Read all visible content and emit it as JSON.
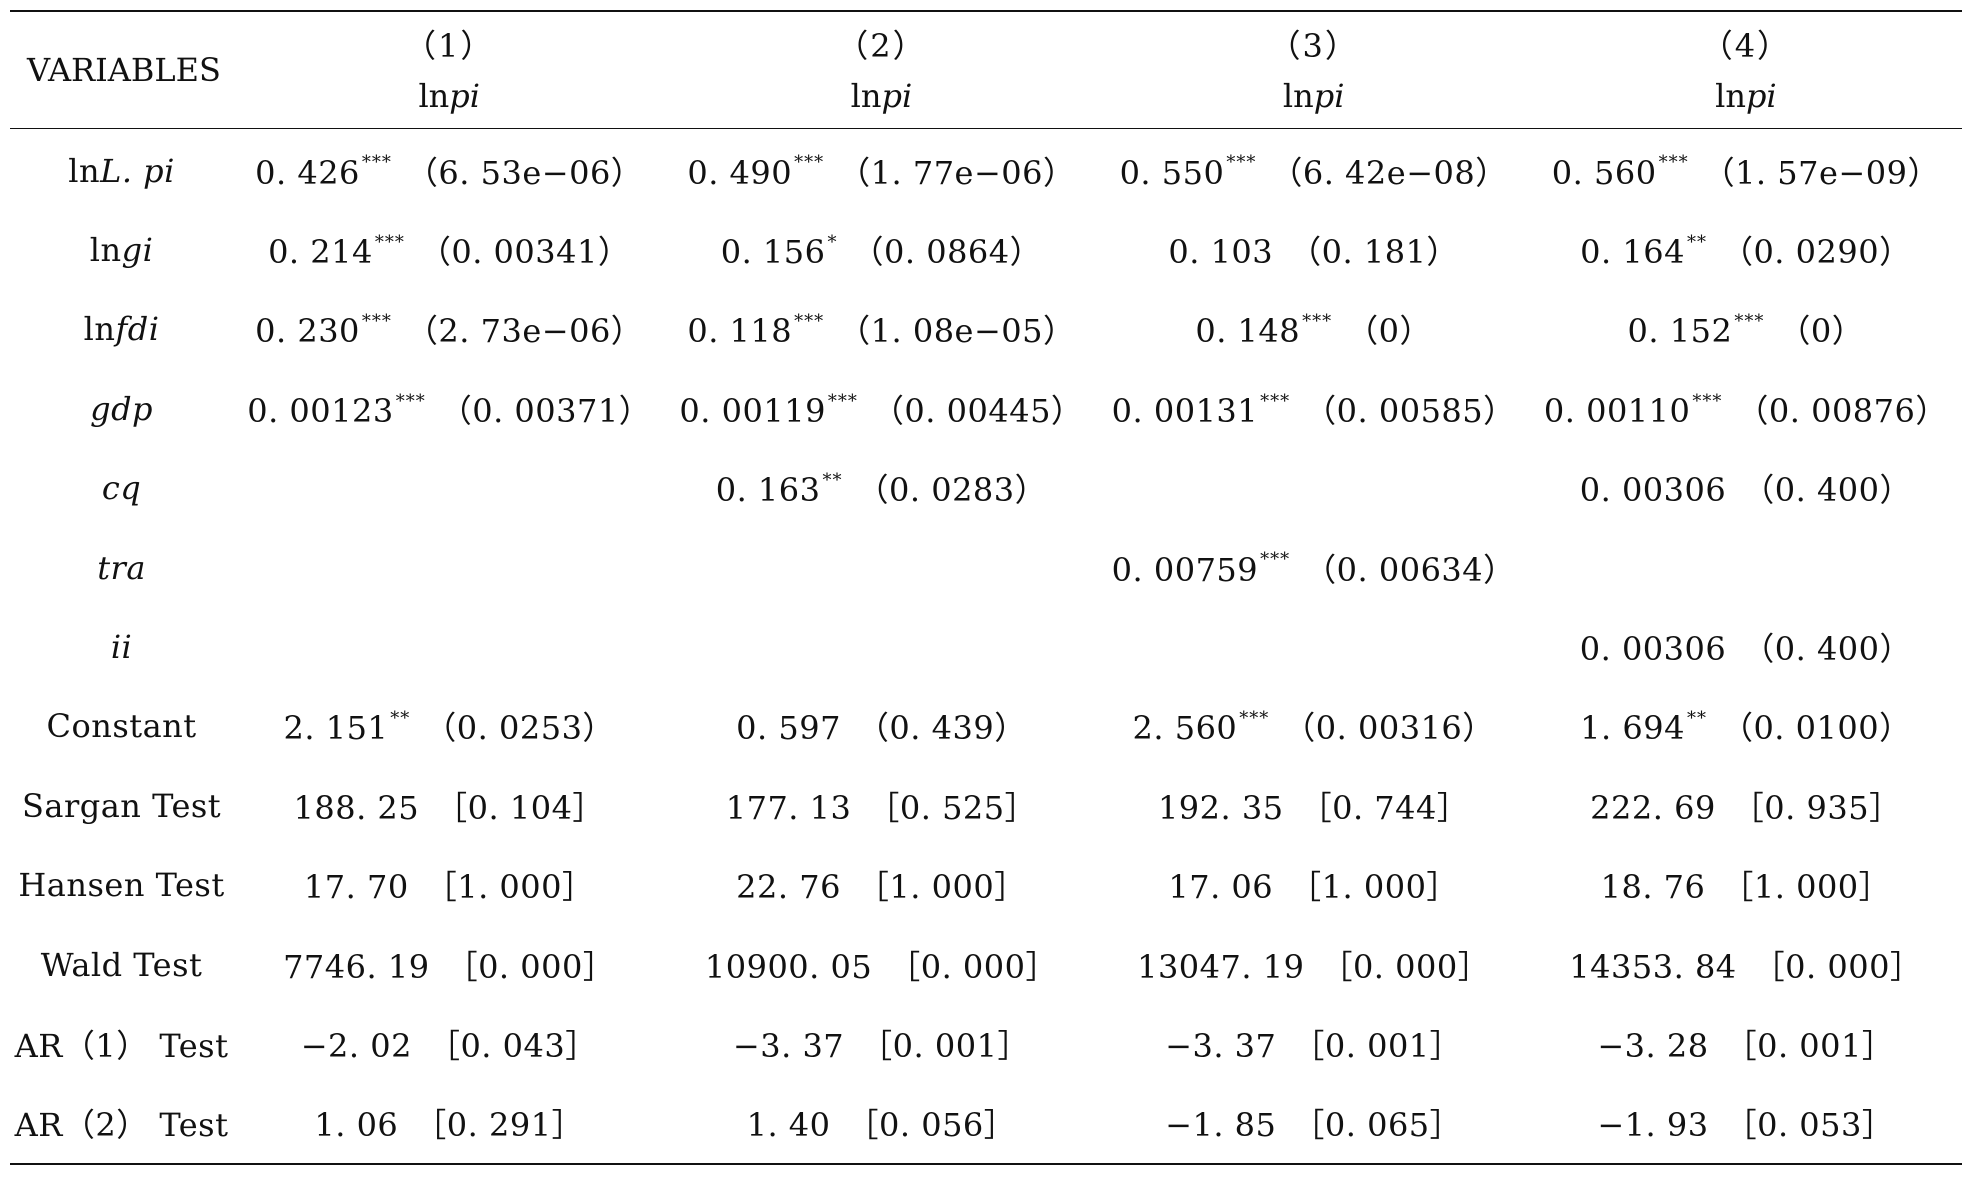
{
  "table": {
    "header": {
      "variables_label": "VARIABLES",
      "columns": [
        {
          "num": "（1）",
          "dep": {
            "pre": "ln",
            "it": "pi"
          }
        },
        {
          "num": "（2）",
          "dep": {
            "pre": "ln",
            "it": "pi"
          }
        },
        {
          "num": "（3）",
          "dep": {
            "pre": "ln",
            "it": "pi"
          }
        },
        {
          "num": "（4）",
          "dep": {
            "pre": "ln",
            "it": "pi"
          }
        }
      ]
    },
    "rows": [
      {
        "label": {
          "pre": "ln",
          "it": "L. pi"
        },
        "cells": [
          {
            "coef": "0. 426",
            "stars": "***",
            "p": "（6. 53e−06）"
          },
          {
            "coef": "0. 490",
            "stars": "***",
            "p": "（1. 77e−06）"
          },
          {
            "coef": "0. 550",
            "stars": "***",
            "p": "（6. 42e−08）"
          },
          {
            "coef": "0. 560",
            "stars": "***",
            "p": "（1. 57e−09）"
          }
        ]
      },
      {
        "label": {
          "pre": "ln",
          "it": "gi"
        },
        "cells": [
          {
            "coef": "0. 214",
            "stars": "***",
            "p": "（0. 00341）"
          },
          {
            "coef": "0. 156",
            "stars": "*",
            "p": "（0. 0864）"
          },
          {
            "coef": "0. 103",
            "stars": "",
            "p": "（0. 181）"
          },
          {
            "coef": "0. 164",
            "stars": "**",
            "p": "（0. 0290）"
          }
        ]
      },
      {
        "label": {
          "pre": "ln",
          "it": "fdi"
        },
        "cells": [
          {
            "coef": "0. 230",
            "stars": "***",
            "p": "（2. 73e−06）"
          },
          {
            "coef": "0. 118",
            "stars": "***",
            "p": "（1. 08e−05）"
          },
          {
            "coef": "0. 148",
            "stars": "***",
            "p": "（0）"
          },
          {
            "coef": "0. 152",
            "stars": "***",
            "p": "（0）"
          }
        ]
      },
      {
        "label": {
          "pre": "",
          "it": "gdp"
        },
        "cells": [
          {
            "coef": "0. 00123",
            "stars": "***",
            "p": "（0. 00371）"
          },
          {
            "coef": "0. 00119",
            "stars": "***",
            "p": "（0. 00445）"
          },
          {
            "coef": "0. 00131",
            "stars": "***",
            "p": "（0. 00585）"
          },
          {
            "coef": "0. 00110",
            "stars": "***",
            "p": "（0. 00876）"
          }
        ]
      },
      {
        "label": {
          "pre": "",
          "it": "cq"
        },
        "cells": [
          {
            "coef": "",
            "stars": "",
            "p": ""
          },
          {
            "coef": "0. 163",
            "stars": "**",
            "p": "（0. 0283）"
          },
          {
            "coef": "",
            "stars": "",
            "p": ""
          },
          {
            "coef": "0. 00306",
            "stars": "",
            "p": "（0. 400）"
          }
        ]
      },
      {
        "label": {
          "pre": "",
          "it": "tra"
        },
        "cells": [
          {
            "coef": "",
            "stars": "",
            "p": ""
          },
          {
            "coef": "",
            "stars": "",
            "p": ""
          },
          {
            "coef": "0. 00759",
            "stars": "***",
            "p": "（0. 00634）"
          },
          {
            "coef": "",
            "stars": "",
            "p": ""
          }
        ]
      },
      {
        "label": {
          "pre": "",
          "it": "ii"
        },
        "cells": [
          {
            "coef": "",
            "stars": "",
            "p": ""
          },
          {
            "coef": "",
            "stars": "",
            "p": ""
          },
          {
            "coef": "",
            "stars": "",
            "p": ""
          },
          {
            "coef": "0. 00306",
            "stars": "",
            "p": "（0. 400）"
          }
        ]
      },
      {
        "label": {
          "pre": "Constant",
          "it": ""
        },
        "cells": [
          {
            "coef": "2. 151",
            "stars": "**",
            "p": "（0. 0253）"
          },
          {
            "coef": "0. 597",
            "stars": "",
            "p": "（0. 439）"
          },
          {
            "coef": "2. 560",
            "stars": "***",
            "p": "（0. 00316）"
          },
          {
            "coef": "1. 694",
            "stars": "**",
            "p": "（0. 0100）"
          }
        ]
      },
      {
        "label": {
          "pre": "Sargan Test",
          "it": ""
        },
        "cells": [
          {
            "coef": "188. 25",
            "stars": "",
            "p": "［0. 104］"
          },
          {
            "coef": "177. 13",
            "stars": "",
            "p": "［0. 525］"
          },
          {
            "coef": "192. 35",
            "stars": "",
            "p": "［0. 744］"
          },
          {
            "coef": "222. 69",
            "stars": "",
            "p": "［0. 935］"
          }
        ]
      },
      {
        "label": {
          "pre": "Hansen Test",
          "it": ""
        },
        "cells": [
          {
            "coef": "17. 70",
            "stars": "",
            "p": "［1. 000］"
          },
          {
            "coef": "22. 76",
            "stars": "",
            "p": "［1. 000］"
          },
          {
            "coef": "17. 06",
            "stars": "",
            "p": "［1. 000］"
          },
          {
            "coef": "18. 76",
            "stars": "",
            "p": "［1. 000］"
          }
        ]
      },
      {
        "label": {
          "pre": "Wald Test",
          "it": ""
        },
        "cells": [
          {
            "coef": "7746. 19",
            "stars": "",
            "p": "［0. 000］"
          },
          {
            "coef": "10900. 05",
            "stars": "",
            "p": "［0. 000］"
          },
          {
            "coef": "13047. 19",
            "stars": "",
            "p": "［0. 000］"
          },
          {
            "coef": "14353. 84",
            "stars": "",
            "p": "［0. 000］"
          }
        ]
      },
      {
        "label": {
          "pre": "AR（1） Test",
          "it": ""
        },
        "cells": [
          {
            "coef": "−2. 02",
            "stars": "",
            "p": "［0. 043］"
          },
          {
            "coef": "−3. 37",
            "stars": "",
            "p": "［0. 001］"
          },
          {
            "coef": "−3. 37",
            "stars": "",
            "p": "［0. 001］"
          },
          {
            "coef": "−3. 28",
            "stars": "",
            "p": "［0. 001］"
          }
        ]
      },
      {
        "label": {
          "pre": "AR（2） Test",
          "it": ""
        },
        "cells": [
          {
            "coef": "1. 06",
            "stars": "",
            "p": "［0. 291］"
          },
          {
            "coef": "1. 40",
            "stars": "",
            "p": "［0. 056］"
          },
          {
            "coef": "−1. 85",
            "stars": "",
            "p": "［0. 065］"
          },
          {
            "coef": "−1. 93",
            "stars": "",
            "p": "［0. 053］"
          }
        ]
      }
    ]
  }
}
